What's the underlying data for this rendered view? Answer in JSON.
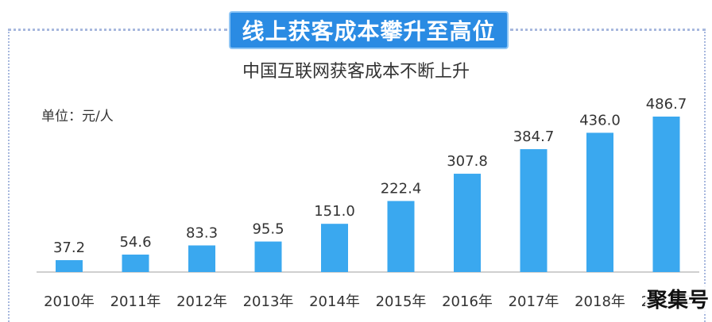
{
  "banner": {
    "title": "线上获客成本攀升至高位"
  },
  "unit_label": "单位：元/人",
  "watermark": "聚集号",
  "chart_data": {
    "type": "bar",
    "title": "中国互联网获客成本不断上升",
    "categories": [
      "2010年",
      "2011年",
      "2012年",
      "2013年",
      "2014年",
      "2015年",
      "2016年",
      "2017年",
      "2018年",
      "2019年"
    ],
    "values": [
      37.2,
      54.6,
      83.3,
      95.5,
      151.0,
      222.4,
      307.8,
      384.7,
      436.0,
      486.7
    ],
    "value_labels": [
      "37.2",
      "54.6",
      "83.3",
      "95.5",
      "151.0",
      "222.4",
      "307.8",
      "384.7",
      "436.0",
      "486.7"
    ],
    "bar_color": "#3aa8ef",
    "ylim": [
      0,
      520
    ],
    "grid": false,
    "legend": "none"
  }
}
